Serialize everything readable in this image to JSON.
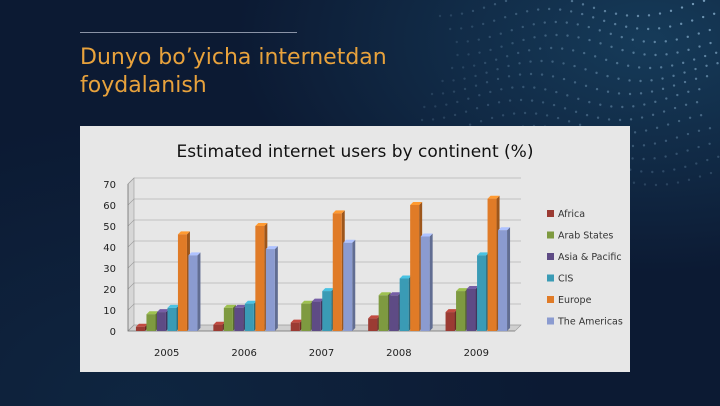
{
  "slide": {
    "title": "Dunyo bo’yicha internetdan foydalanish"
  },
  "colors": {
    "title": "#e8a23c",
    "background": "#0c1a33",
    "chart_panel": "#e7e7e7"
  },
  "chart_data": {
    "type": "bar",
    "title": "Estimated internet users by continent (%)",
    "xlabel": "",
    "ylabel": "",
    "categories": [
      "2005",
      "2006",
      "2007",
      "2008",
      "2009"
    ],
    "ylim": [
      0,
      70
    ],
    "yticks": [
      0,
      10,
      20,
      30,
      40,
      50,
      60,
      70
    ],
    "grid": true,
    "legend": "right",
    "series": [
      {
        "name": "Africa",
        "color": "#9b3b33",
        "values": [
          2,
          3,
          4,
          6,
          9
        ]
      },
      {
        "name": "Arab States",
        "color": "#7e9a40",
        "values": [
          8,
          11,
          13,
          17,
          19
        ]
      },
      {
        "name": "Asia & Pacific",
        "color": "#5e4b85",
        "values": [
          9,
          11,
          14,
          17,
          20
        ]
      },
      {
        "name": "CIS",
        "color": "#3a9bb5",
        "values": [
          11,
          13,
          19,
          25,
          36
        ]
      },
      {
        "name": "Europe",
        "color": "#e07b27",
        "values": [
          46,
          50,
          56,
          60,
          63
        ]
      },
      {
        "name": "The Americas",
        "color": "#8b9bd0",
        "values": [
          36,
          39,
          42,
          45,
          48
        ]
      }
    ]
  }
}
